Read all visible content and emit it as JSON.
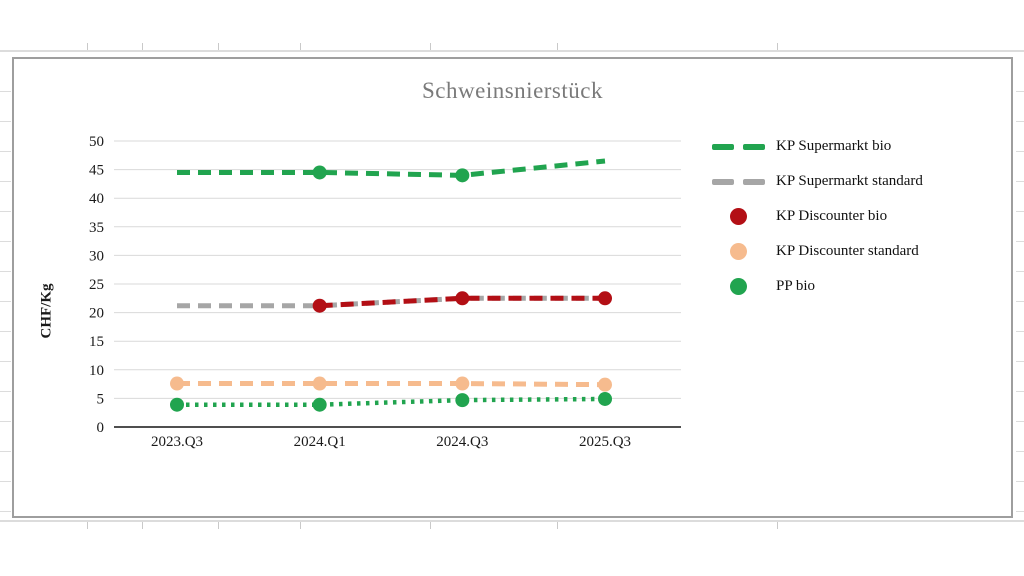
{
  "chart_data": {
    "type": "line",
    "title": "Schweinsnierstück",
    "ylabel": "CHF/Kg",
    "xlabel": "",
    "categories": [
      "2023.Q3",
      "2024.Q1",
      "2024.Q3",
      "2025.Q3"
    ],
    "y_ticks": [
      0,
      5,
      10,
      15,
      20,
      25,
      30,
      35,
      40,
      45,
      50
    ],
    "ylim": [
      0,
      50
    ],
    "grid": "horizontal",
    "legend_position": "right",
    "series": [
      {
        "name": "KP Supermarkt bio",
        "color": "#21a44f",
        "line_style": "dashed",
        "legend_swatch": "dashes",
        "values": [
          44.5,
          44.5,
          44.0,
          46.5
        ],
        "marker_at": [
          1,
          2
        ]
      },
      {
        "name": "KP Supermarkt standard",
        "color": "#a6a6a6",
        "line_style": "dashed",
        "legend_swatch": "dashes",
        "values": [
          21.2,
          21.2,
          22.5,
          22.5
        ],
        "marker_at": []
      },
      {
        "name": "KP Discounter bio",
        "color": "#b30f15",
        "line_style": "dashed",
        "legend_swatch": "circle",
        "values": [
          null,
          21.2,
          22.5,
          22.5
        ],
        "marker_at": [
          1,
          2,
          3
        ]
      },
      {
        "name": "KP Discounter standard",
        "color": "#f6bb8e",
        "line_style": "dashed",
        "legend_swatch": "circle",
        "values": [
          7.6,
          7.6,
          7.6,
          7.4
        ],
        "marker_at": [
          0,
          1,
          2,
          3
        ]
      },
      {
        "name": "PP bio",
        "color": "#21a44f",
        "line_style": "dotted",
        "legend_swatch": "circle",
        "values": [
          3.9,
          3.9,
          4.7,
          4.9
        ],
        "marker_at": [
          0,
          1,
          2,
          3
        ]
      }
    ],
    "colors": {
      "gridline": "#d9d9d9",
      "axis_line": "#4f4f4f",
      "tick_label": "#1a1a1a",
      "title": "#7a7a7a"
    }
  }
}
